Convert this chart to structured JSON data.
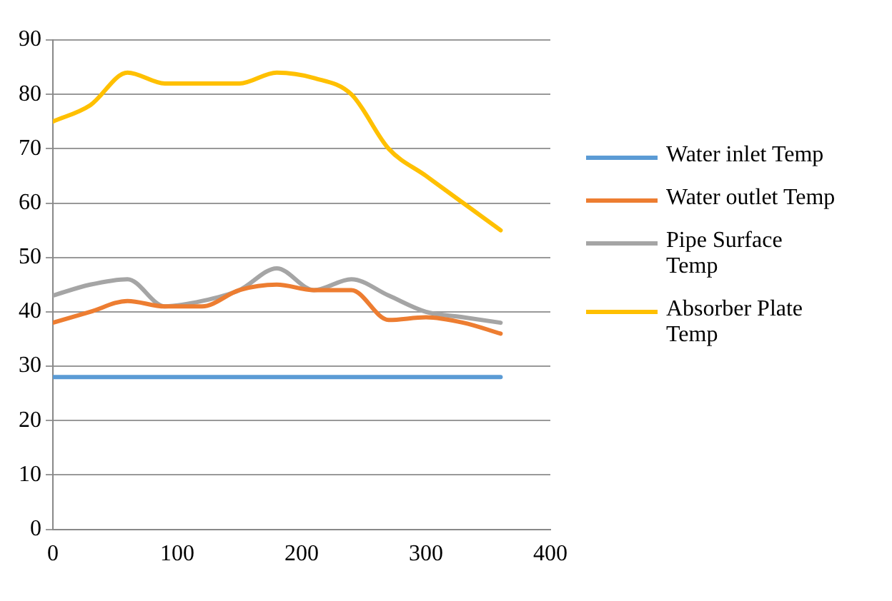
{
  "chart_data": {
    "type": "line",
    "x": [
      0,
      30,
      60,
      90,
      120,
      150,
      180,
      210,
      240,
      270,
      300,
      330,
      360
    ],
    "xlim": [
      0,
      400
    ],
    "xticks": [
      0,
      100,
      200,
      300,
      400
    ],
    "ylim": [
      0,
      90
    ],
    "yticks": [
      0,
      10,
      20,
      30,
      40,
      50,
      60,
      70,
      80,
      90
    ],
    "grid": "y",
    "legend": "right",
    "marker": "none",
    "series": [
      {
        "name": "Water inlet Temp",
        "color": "#5b9bd5",
        "values": [
          28,
          28,
          28,
          28,
          28,
          28,
          28,
          28,
          28,
          28,
          28,
          28,
          28
        ]
      },
      {
        "name": "Water outlet Temp",
        "color": "#ed7d31",
        "values": [
          38,
          40,
          42,
          41,
          41,
          44,
          45,
          44,
          44,
          38.5,
          39,
          38,
          36
        ]
      },
      {
        "name": "Pipe Surface Temp",
        "color": "#a5a5a5",
        "values": [
          43,
          45,
          46,
          41,
          42,
          44,
          48,
          44,
          46,
          43,
          40,
          39,
          38
        ]
      },
      {
        "name": "Absorber Plate Temp",
        "color": "#ffc000",
        "values": [
          75,
          78,
          84,
          82,
          82,
          82,
          84,
          83,
          80,
          70,
          65,
          60,
          55
        ]
      }
    ]
  }
}
